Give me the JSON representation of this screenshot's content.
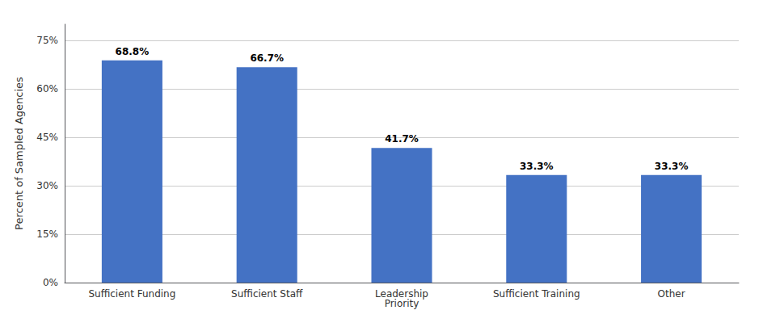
{
  "chart_data": {
    "type": "bar",
    "categories": [
      "Sufficient Funding",
      "Sufficient Staff",
      "Leadership\nPriority",
      "Sufficient Training",
      "Other"
    ],
    "values": [
      68.8,
      66.7,
      41.7,
      33.3,
      33.3
    ],
    "value_labels": [
      "68.8%",
      "66.7%",
      "41.7%",
      "33.3%",
      "33.3%"
    ],
    "data_labels": true,
    "color": "#4472C4",
    "ylabel": "Percent of Sampled Agencies",
    "ylim": [
      0,
      80
    ],
    "yticks": [
      {
        "value": 0,
        "label": "0%"
      },
      {
        "value": 15,
        "label": "15%"
      },
      {
        "value": 30,
        "label": "30%"
      },
      {
        "value": 45,
        "label": "45%"
      },
      {
        "value": 60,
        "label": "60%"
      },
      {
        "value": 75,
        "label": "75%"
      }
    ],
    "grid": true
  }
}
